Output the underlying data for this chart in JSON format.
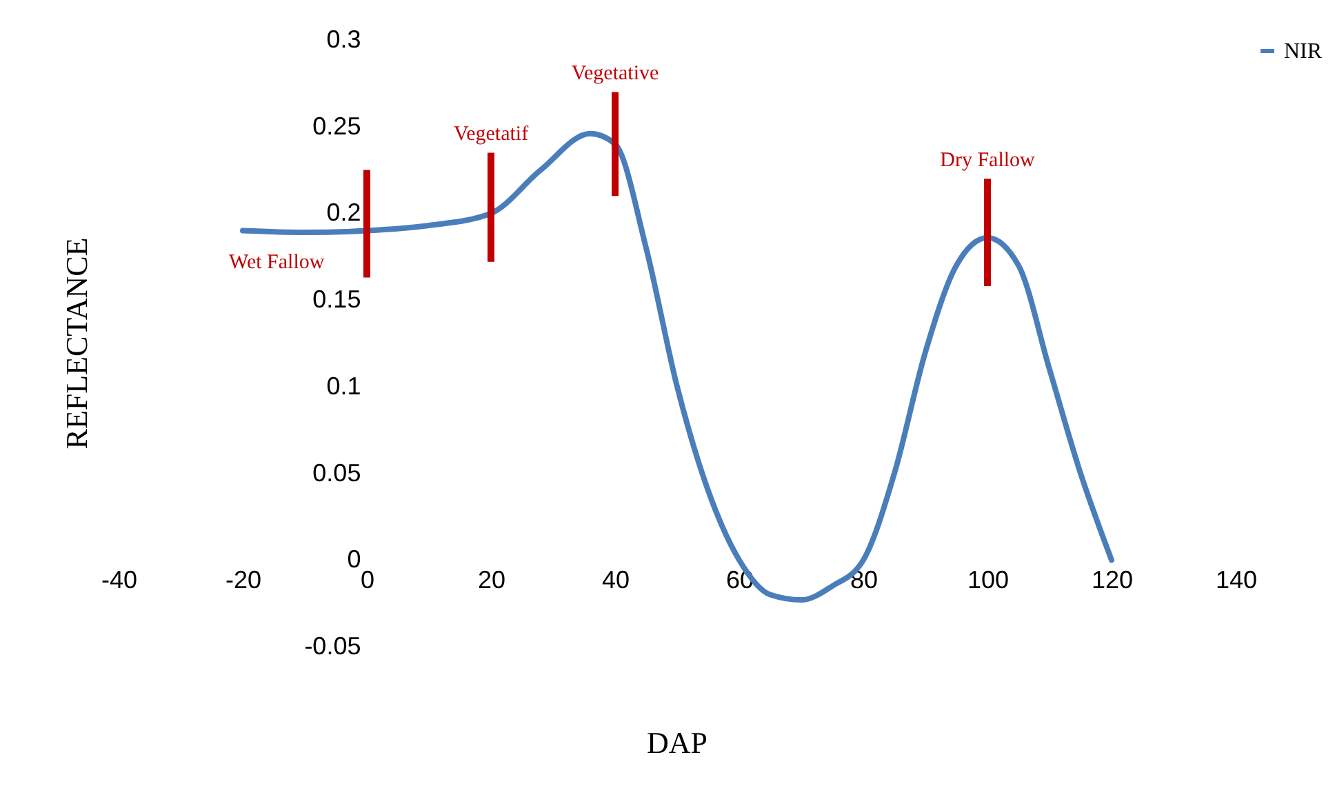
{
  "chart_data": {
    "type": "line",
    "xlabel": "DAP",
    "ylabel": "REFLECTANCE",
    "xlim": [
      -40,
      140
    ],
    "xticks": [
      -40,
      -20,
      0,
      20,
      40,
      60,
      80,
      100,
      120,
      140
    ],
    "ylim": [
      -0.05,
      0.3
    ],
    "yticks": [
      -0.05,
      0,
      0.05,
      0.1,
      0.15,
      0.2,
      0.25,
      0.3
    ],
    "grid": false,
    "legend": "right",
    "line_style": "solid",
    "marker": "none",
    "series": [
      {
        "name": "NIR",
        "color": "#4a7ebb",
        "x": [
          -20,
          -10,
          0,
          10,
          20,
          28,
          36,
          40,
          45,
          50,
          55,
          60,
          65,
          70,
          75,
          80,
          85,
          90,
          95,
          100,
          105,
          110,
          115,
          120
        ],
        "values": [
          0.19,
          0.189,
          0.19,
          0.193,
          0.2,
          0.225,
          0.246,
          0.24,
          0.18,
          0.1,
          0.04,
          0,
          -0.02,
          -0.023,
          -0.015,
          0,
          0.05,
          0.12,
          0.17,
          0.186,
          0.17,
          0.11,
          0.05,
          0
        ]
      },
      {
        "type": "bar",
        "color": "#c00000",
        "x": [
          0,
          20,
          40,
          100
        ],
        "base": [
          0.163,
          0.172,
          0.21,
          0.158
        ],
        "values": [
          0.062,
          0.063,
          0.06,
          0.062
        ]
      }
    ],
    "annotations": [
      {
        "text": "Wet Fallow",
        "x": -20,
        "y": 0.19
      },
      {
        "text": "Vegetatif",
        "x": 20,
        "y": 0.235
      },
      {
        "text": "Vegetative",
        "x": 40,
        "y": 0.27
      },
      {
        "text": "Dry Fallow",
        "x": 100,
        "y": 0.22
      }
    ]
  }
}
